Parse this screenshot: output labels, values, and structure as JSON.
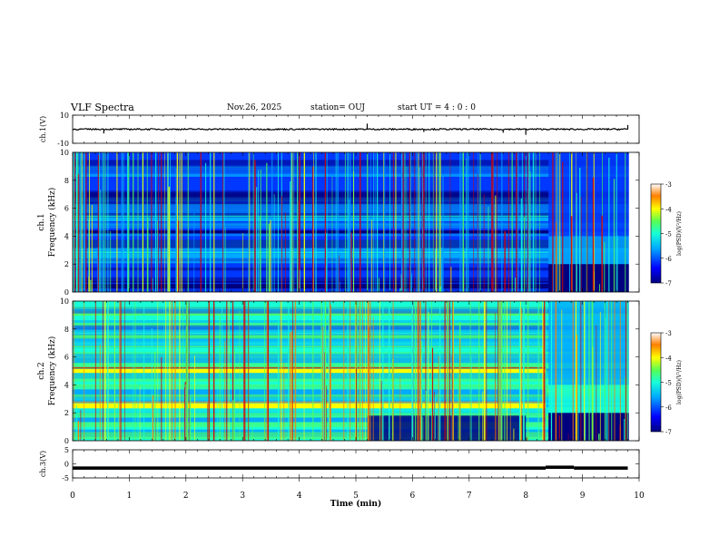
{
  "header": {
    "title": "VLF Spectra",
    "date": "Nov.26, 2025",
    "station": "station= OUJ",
    "start_ut": "start  UT =   4 : 0  : 0"
  },
  "colors": {
    "deep": "#00007f",
    "blue": "#0038ff",
    "lightblue": "#00aaff",
    "cyan": "#17ffd8",
    "green": "#55ff55",
    "yellow": "#ffff00",
    "orange": "#ff7f00",
    "red": "#d90000"
  },
  "chart_data": [
    {
      "type": "line",
      "name": "ch1-waveform",
      "ylabel": "ch.1(V)",
      "ylim": [
        -10,
        10
      ],
      "yticks": [
        "10",
        "-10"
      ],
      "baseline": 0,
      "spikes": [
        {
          "t": 0.55,
          "v": -3
        },
        {
          "t": 5.2,
          "v": 4
        },
        {
          "t": 6.2,
          "v": -2
        },
        {
          "t": 7.6,
          "v": -2.5
        },
        {
          "t": 8.0,
          "v": -4
        },
        {
          "t": 9.8,
          "v": 3
        }
      ]
    },
    {
      "type": "heatmap",
      "name": "ch1-spectrogram",
      "ylabel_top": "ch.1",
      "ylabel": "Frequency (kHz)",
      "ylim": [
        0,
        10
      ],
      "yticks": [
        "0",
        "2",
        "4",
        "6",
        "8",
        "10"
      ],
      "bands_khz": [
        {
          "f": 5.2,
          "level": -5.3
        },
        {
          "f": 4.3,
          "level": -6.8
        },
        {
          "f": 2.6,
          "level": -5.2
        },
        {
          "f": 1.9,
          "level": -5.8
        },
        {
          "f": 1.2,
          "level": -6.2
        },
        {
          "f": 0.4,
          "level": -6.5
        }
      ],
      "colorbar": {
        "label": "log(PSD)(V²/Hz)",
        "ticks": [
          "-3",
          "-4",
          "-5",
          "-6",
          "-7"
        ],
        "range": [
          -7,
          -3
        ]
      }
    },
    {
      "type": "heatmap",
      "name": "ch2-spectrogram",
      "ylabel_top": "ch.2",
      "ylabel": "Frequency (kHz)",
      "ylim": [
        0,
        10
      ],
      "yticks": [
        "0",
        "2",
        "4",
        "6",
        "8",
        "10"
      ],
      "bands_khz": [
        {
          "f": 5.0,
          "level": -3.9
        },
        {
          "f": 2.5,
          "level": -4.2
        },
        {
          "f": 6.5,
          "level": -5.0
        },
        {
          "f": 3.5,
          "level": -5.2
        },
        {
          "f": 1.5,
          "level": -5.5
        }
      ],
      "colorbar": {
        "label": "log(PSD)(V²/Hz)",
        "ticks": [
          "-3",
          "-4",
          "-5",
          "-6",
          "-7"
        ],
        "range": [
          -7,
          -3
        ]
      }
    },
    {
      "type": "line",
      "name": "ch3-waveform",
      "ylabel": "ch.3(V)",
      "ylim": [
        -5,
        5
      ],
      "yticks": [
        "5",
        "0",
        "-5"
      ],
      "segments": [
        {
          "t0": 0,
          "t1": 8.35,
          "v": -1.5
        },
        {
          "t0": 8.35,
          "t1": 8.85,
          "v": -1.2
        },
        {
          "t0": 8.85,
          "t1": 9.8,
          "v": -1.5
        }
      ]
    }
  ],
  "xaxis": {
    "label": "Time (min)",
    "range": [
      0,
      10
    ],
    "ticks": [
      "0",
      "1",
      "2",
      "3",
      "4",
      "5",
      "6",
      "7",
      "8",
      "9",
      "10"
    ]
  }
}
